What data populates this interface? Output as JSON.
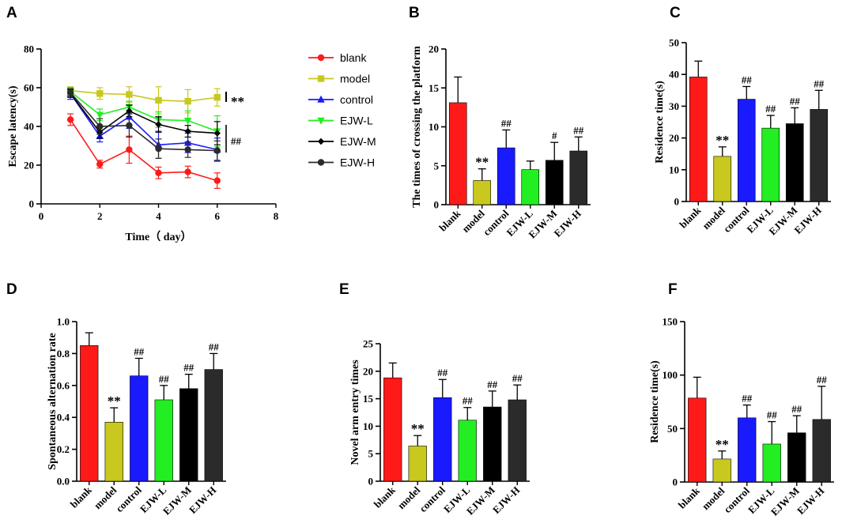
{
  "panels": [
    {
      "id": "A",
      "letter": "A"
    },
    {
      "id": "B",
      "letter": "B"
    },
    {
      "id": "C",
      "letter": "C"
    },
    {
      "id": "D",
      "letter": "D"
    },
    {
      "id": "E",
      "letter": "E"
    },
    {
      "id": "F",
      "letter": "F"
    }
  ],
  "colors": {
    "blank": "#ff1a1a",
    "model": "#c8c81e",
    "control": "#1a1aff",
    "EJW-L": "#22ee22",
    "EJW-M": "#000000",
    "EJW-H": "#2b2b2b"
  },
  "chart_data": [
    {
      "panel": "A",
      "type": "line",
      "title": "",
      "xlabel": "Time（ day）",
      "ylabel": "Escape latency(s)",
      "xlim": [
        0,
        8
      ],
      "ylim": [
        0,
        80
      ],
      "xticks": [
        "0",
        "2",
        "4",
        "6",
        "8"
      ],
      "yticks": [
        "0",
        "20",
        "40",
        "60",
        "80"
      ],
      "x": [
        1,
        2,
        3,
        4,
        5,
        6
      ],
      "series": [
        {
          "name": "blank",
          "marker": "circle",
          "values": [
            43.5,
            20.5,
            28,
            16,
            16.5,
            12
          ],
          "errors": [
            3,
            2,
            7,
            3,
            3,
            4
          ]
        },
        {
          "name": "model",
          "marker": "square",
          "values": [
            58.5,
            57,
            56.5,
            53.5,
            53,
            55
          ],
          "errors": [
            2,
            3,
            4,
            7,
            6,
            4.5
          ]
        },
        {
          "name": "control",
          "marker": "triangle-up",
          "values": [
            57,
            35,
            45,
            30.5,
            31.5,
            28
          ],
          "errors": [
            3,
            3,
            6,
            7,
            5,
            6
          ]
        },
        {
          "name": "EJW-L",
          "marker": "triangle-down",
          "values": [
            58,
            46,
            50,
            43.5,
            43,
            37.5
          ],
          "errors": [
            2,
            3,
            3,
            4,
            5,
            8
          ]
        },
        {
          "name": "EJW-M",
          "marker": "diamond",
          "values": [
            57,
            37,
            48,
            41,
            37.5,
            36.5
          ],
          "errors": [
            2,
            3,
            3,
            4,
            3,
            6
          ]
        },
        {
          "name": "EJW-H",
          "marker": "circle",
          "values": [
            57.5,
            40,
            40.5,
            28.5,
            28,
            27.5
          ],
          "errors": [
            2,
            4,
            6,
            5,
            4,
            5
          ]
        }
      ],
      "annotations": [
        {
          "text": "**",
          "target": "model"
        },
        {
          "text": "##",
          "target": "EJW groups"
        }
      ],
      "legend": [
        "blank",
        "model",
        "control",
        "EJW-L",
        "EJW-M",
        "EJW-H"
      ]
    },
    {
      "panel": "B",
      "type": "bar",
      "ylabel": "The times of crossing the platform",
      "ylim": [
        0,
        20
      ],
      "yticks": [
        "0",
        "5",
        "10",
        "15",
        "20"
      ],
      "categories": [
        "blank",
        "model",
        "control",
        "EJW-L",
        "EJW-M",
        "EJW-H"
      ],
      "values": [
        13.1,
        3.1,
        7.3,
        4.5,
        5.7,
        6.9
      ],
      "errors": [
        3.3,
        1.5,
        2.3,
        1.1,
        2.3,
        1.8
      ],
      "annotations": [
        "",
        "**",
        "##",
        "",
        "#",
        "##"
      ]
    },
    {
      "panel": "C",
      "type": "bar",
      "ylabel": "Residence time(s)",
      "ylim": [
        0,
        50
      ],
      "yticks": [
        "0",
        "10",
        "20",
        "30",
        "40",
        "50"
      ],
      "categories": [
        "blank",
        "model",
        "control",
        "EJW-L",
        "EJW-M",
        "EJW-H"
      ],
      "values": [
        39.2,
        14.2,
        32.2,
        23.1,
        24.5,
        29
      ],
      "errors": [
        5,
        3,
        4,
        4,
        5,
        6
      ],
      "annotations": [
        "",
        "**",
        "##",
        "##",
        "##",
        "##"
      ]
    },
    {
      "panel": "D",
      "type": "bar",
      "ylabel": "Spontaneous alternation rate",
      "ylim": [
        0,
        1.0
      ],
      "yticks": [
        "0.0",
        "0.2",
        "0.4",
        "0.6",
        "0.8",
        "1.0"
      ],
      "categories": [
        "blank",
        "model",
        "control",
        "EJW-L",
        "EJW-M",
        "EJW-H"
      ],
      "values": [
        0.85,
        0.37,
        0.66,
        0.51,
        0.58,
        0.7
      ],
      "errors": [
        0.08,
        0.09,
        0.11,
        0.09,
        0.09,
        0.1
      ],
      "annotations": [
        "",
        "**",
        "##",
        "##",
        "##",
        "##"
      ]
    },
    {
      "panel": "E",
      "type": "bar",
      "ylabel": "Novel arm entry times",
      "ylim": [
        0,
        25
      ],
      "yticks": [
        "0",
        "5",
        "10",
        "15",
        "20",
        "25"
      ],
      "categories": [
        "blank",
        "model",
        "control",
        "EJW-L",
        "EJW-M",
        "EJW-H"
      ],
      "values": [
        18.8,
        6.4,
        15.2,
        11.1,
        13.5,
        14.8
      ],
      "errors": [
        2.7,
        1.9,
        3.3,
        2.3,
        2.9,
        2.7
      ],
      "annotations": [
        "",
        "**",
        "##",
        "##",
        "##",
        "##"
      ]
    },
    {
      "panel": "F",
      "type": "bar",
      "ylabel": "Residence time(s)",
      "ylim": [
        0,
        150
      ],
      "yticks": [
        "0",
        "50",
        "100",
        "150"
      ],
      "categories": [
        "blank",
        "model",
        "control",
        "EJW-L",
        "EJW-M",
        "EJW-H"
      ],
      "values": [
        78.5,
        21.5,
        60,
        35.5,
        46,
        58.5
      ],
      "errors": [
        19.5,
        7.5,
        12,
        21,
        16,
        31
      ],
      "annotations": [
        "",
        "**",
        "##",
        "##",
        "##",
        "##"
      ]
    }
  ]
}
